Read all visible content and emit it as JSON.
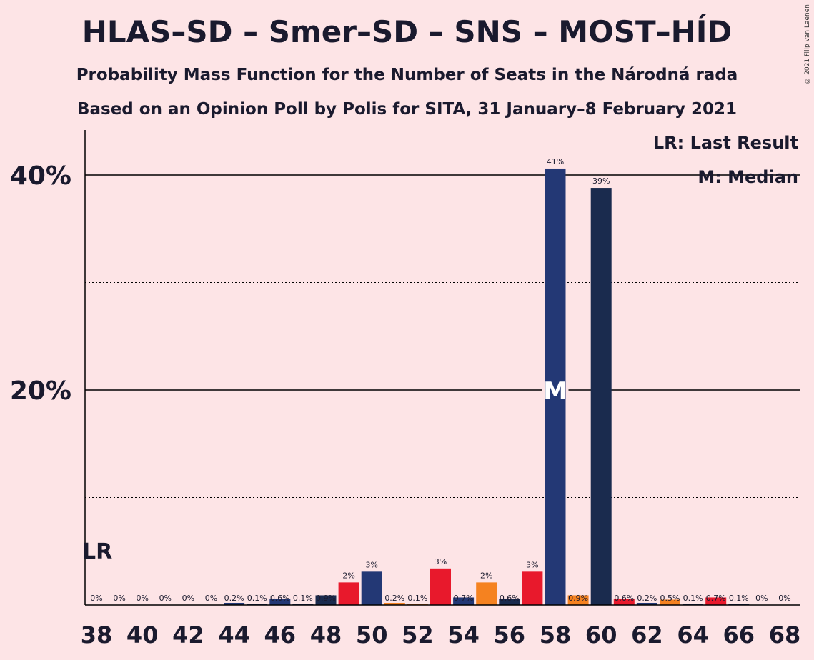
{
  "title": "HLAS–SD – Smer–SD – SNS – MOST–HÍD",
  "subtitle1": "Probability Mass Function for the Number of Seats in the Národná rada",
  "subtitle2": "Based on an Opinion Poll by Polis for SITA, 31 January–8 February 2021",
  "copyright": "© 2021 Filip van Laenen",
  "legend": {
    "lr": "LR: Last Result",
    "median": "M: Median"
  },
  "lr_label": "LR",
  "median_label": "M",
  "colors": {
    "background": "#fde4e6",
    "hlas": "#233875",
    "smer": "#e8192c",
    "sns": "#f58220",
    "most": "#1a2b4e"
  },
  "chart_data": {
    "type": "bar",
    "title": "HLAS–SD – Smer–SD – SNS – MOST–HÍD",
    "xlabel": "",
    "ylabel": "",
    "ylim": [
      0,
      44
    ],
    "y_ticks": [
      {
        "value": 20,
        "label": "20%",
        "style": "solid"
      },
      {
        "value": 40,
        "label": "40%",
        "style": "solid"
      }
    ],
    "y_minor_dotted": [
      10,
      30
    ],
    "x_tick_labels": [
      38,
      40,
      42,
      44,
      46,
      48,
      50,
      52,
      54,
      56,
      58,
      60,
      62,
      64,
      66,
      68
    ],
    "last_result_seat": 38,
    "median_seat": 58,
    "bars": [
      {
        "seat": 38,
        "value": 0,
        "label": "0%",
        "color": "hlas"
      },
      {
        "seat": 39,
        "value": 0,
        "label": "0%",
        "color": "hlas"
      },
      {
        "seat": 40,
        "value": 0,
        "label": "0%",
        "color": "hlas"
      },
      {
        "seat": 41,
        "value": 0,
        "label": "0%",
        "color": "hlas"
      },
      {
        "seat": 42,
        "value": 0,
        "label": "0%",
        "color": "hlas"
      },
      {
        "seat": 43,
        "value": 0,
        "label": "0%",
        "color": "hlas"
      },
      {
        "seat": 44,
        "value": 0.2,
        "label": "0.2%",
        "color": "hlas"
      },
      {
        "seat": 45,
        "value": 0.1,
        "label": "0.1%",
        "color": "hlas"
      },
      {
        "seat": 46,
        "value": 0.6,
        "label": "0.6%",
        "color": "hlas"
      },
      {
        "seat": 47,
        "value": 0.1,
        "label": "0.1%",
        "color": "hlas"
      },
      {
        "seat": 48,
        "value": 0.9,
        "label": "0.9%",
        "color": "most"
      },
      {
        "seat": 49,
        "value": 2.1,
        "label": "2%",
        "color": "smer"
      },
      {
        "seat": 50,
        "value": 3.1,
        "label": "3%",
        "color": "hlas"
      },
      {
        "seat": 51,
        "value": 0.2,
        "label": "0.2%",
        "color": "sns"
      },
      {
        "seat": 52,
        "value": 0.1,
        "label": "0.1%",
        "color": "sns"
      },
      {
        "seat": 53,
        "value": 3.4,
        "label": "3%",
        "color": "smer"
      },
      {
        "seat": 54,
        "value": 0.7,
        "label": "0.7%",
        "color": "hlas"
      },
      {
        "seat": 55,
        "value": 2.1,
        "label": "2%",
        "color": "sns"
      },
      {
        "seat": 56,
        "value": 0.6,
        "label": "0.6%",
        "color": "most"
      },
      {
        "seat": 57,
        "value": 3.1,
        "label": "3%",
        "color": "smer"
      },
      {
        "seat": 58,
        "value": 40.6,
        "label": "41%",
        "color": "hlas"
      },
      {
        "seat": 59,
        "value": 0.9,
        "label": "0.9%",
        "color": "sns"
      },
      {
        "seat": 60,
        "value": 38.8,
        "label": "39%",
        "color": "most"
      },
      {
        "seat": 61,
        "value": 0.6,
        "label": "0.6%",
        "color": "smer"
      },
      {
        "seat": 62,
        "value": 0.2,
        "label": "0.2%",
        "color": "hlas"
      },
      {
        "seat": 63,
        "value": 0.5,
        "label": "0.5%",
        "color": "sns"
      },
      {
        "seat": 64,
        "value": 0.1,
        "label": "0.1%",
        "color": "hlas"
      },
      {
        "seat": 65,
        "value": 0.7,
        "label": "0.7%",
        "color": "smer"
      },
      {
        "seat": 66,
        "value": 0.1,
        "label": "0.1%",
        "color": "hlas"
      },
      {
        "seat": 67,
        "value": 0,
        "label": "0%",
        "color": "hlas"
      },
      {
        "seat": 68,
        "value": 0,
        "label": "0%",
        "color": "hlas"
      }
    ]
  }
}
